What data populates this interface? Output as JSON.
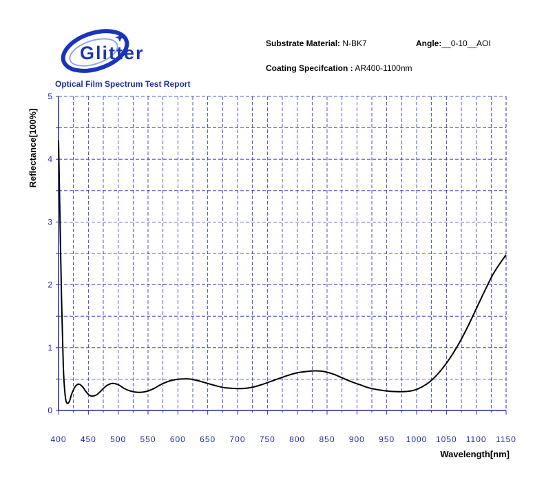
{
  "header": {
    "logo_text": "Glitter",
    "report_title": "Optical Film Spectrum Test Report",
    "substrate_label": "Substrate Material:",
    "substrate_value": "N-BK7",
    "angle_label": "Angle:",
    "angle_value": "__0-10__AOI",
    "coating_label": "Coating Specifcation :",
    "coating_value": "AR400-1100nm"
  },
  "colors": {
    "logo_blue": "#1a35b8",
    "grid_blue": "#1f2aa8",
    "tick_text": "#1f2aa8",
    "curve": "#000000"
  },
  "chart_data": {
    "type": "line",
    "xlabel": "Wavelength[nm]",
    "ylabel": "Reflectance[100%]",
    "xlim": [
      400,
      1150
    ],
    "ylim": [
      0,
      5
    ],
    "x_ticks": [
      "400",
      "450",
      "500",
      "550",
      "600",
      "650",
      "700",
      "750",
      "800",
      "850",
      "900",
      "950",
      "1000",
      "1050",
      "1100",
      "1150"
    ],
    "y_ticks": [
      "0",
      "1",
      "2",
      "3",
      "4",
      "5"
    ],
    "grid": true,
    "series": [
      {
        "color": "#000000",
        "x": [
          400,
          402,
          405,
          408,
          411,
          414,
          418,
          422,
          428,
          434,
          440,
          446,
          452,
          458,
          464,
          470,
          480,
          490,
          500,
          510,
          520,
          530,
          540,
          550,
          560,
          575,
          590,
          605,
          620,
          635,
          650,
          665,
          680,
          695,
          710,
          725,
          740,
          755,
          770,
          785,
          800,
          815,
          830,
          845,
          860,
          875,
          890,
          905,
          920,
          935,
          950,
          965,
          980,
          995,
          1010,
          1025,
          1040,
          1055,
          1070,
          1085,
          1100,
          1115,
          1130,
          1150
        ],
        "y": [
          4.3,
          3.3,
          1.8,
          0.7,
          0.25,
          0.12,
          0.14,
          0.26,
          0.38,
          0.42,
          0.38,
          0.3,
          0.24,
          0.23,
          0.25,
          0.3,
          0.39,
          0.43,
          0.41,
          0.35,
          0.31,
          0.29,
          0.29,
          0.31,
          0.35,
          0.43,
          0.48,
          0.5,
          0.5,
          0.47,
          0.43,
          0.39,
          0.36,
          0.35,
          0.35,
          0.37,
          0.41,
          0.46,
          0.51,
          0.56,
          0.6,
          0.62,
          0.63,
          0.62,
          0.58,
          0.52,
          0.46,
          0.41,
          0.36,
          0.33,
          0.31,
          0.3,
          0.3,
          0.32,
          0.38,
          0.48,
          0.63,
          0.82,
          1.05,
          1.32,
          1.62,
          1.92,
          2.2,
          2.48
        ]
      }
    ]
  }
}
